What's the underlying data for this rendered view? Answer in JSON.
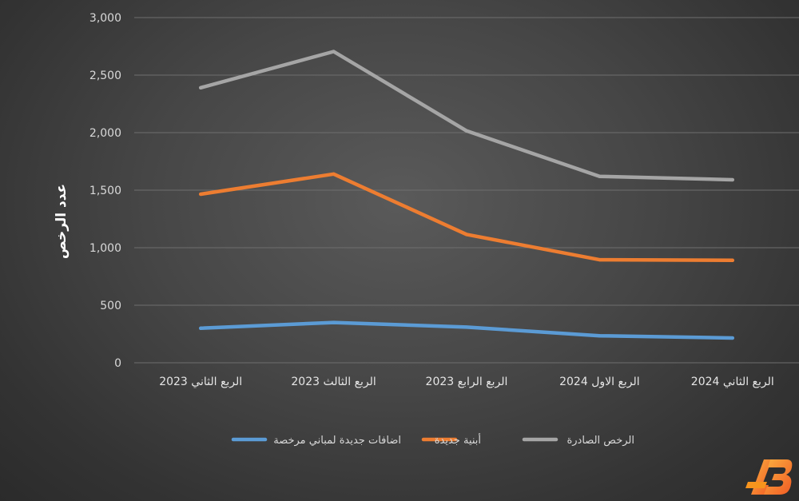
{
  "chart_data": {
    "type": "line",
    "title": "",
    "xlabel": "",
    "ylabel": "عدد الرخص",
    "categories": [
      "الربع الثاني 2023",
      "الربع الثالث 2023",
      "الربع الرابع 2023",
      "الربع الاول 2024",
      "الربع الثاني 2024"
    ],
    "ylim": [
      0,
      3000
    ],
    "ytick_values": [
      0,
      500,
      1000,
      1500,
      2000,
      2500,
      3000
    ],
    "ytick_labels": [
      "0",
      "500",
      "1,000",
      "1,500",
      "2,000",
      "2,500",
      "3,000"
    ],
    "grid": true,
    "legend_position": "bottom",
    "series": [
      {
        "name": "اضافات جديدة لمباني مرخصة",
        "color": "#5b9bd5",
        "values": [
          300,
          350,
          310,
          235,
          215
        ]
      },
      {
        "name": "أبنية جديدة",
        "color": "#ed7d31",
        "values": [
          1465,
          1640,
          1115,
          895,
          890
        ]
      },
      {
        "name": "الرخص الصادرة",
        "color": "#a5a5a5",
        "values": [
          2390,
          2705,
          2015,
          1620,
          1590
        ]
      }
    ]
  },
  "logo_icon": "ab-logo-icon"
}
